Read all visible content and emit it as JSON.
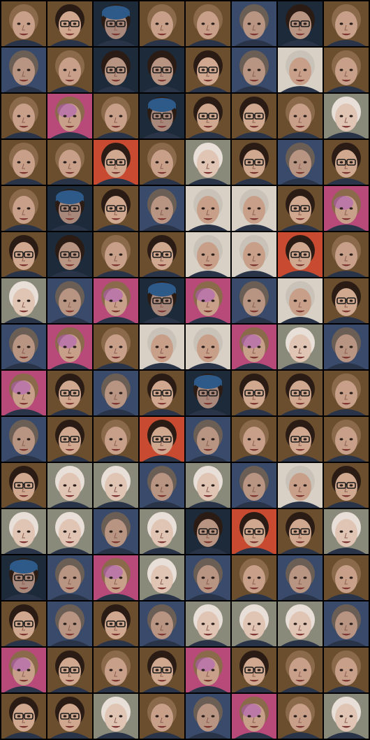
{
  "image": {
    "kind": "sample-grid",
    "rows": 16,
    "cols": 8,
    "colors": {
      "gutter": "#000000",
      "skin_tones": [
        "#c8a08a",
        "#b89483",
        "#d0a890",
        "#a9887c",
        "#e0c4b4"
      ],
      "hair_tones": [
        "#2a1c14",
        "#6b5e55",
        "#c9c2b8",
        "#8a6a4a",
        "#e8e0d8"
      ],
      "backgrounds": [
        "#6b4e2e",
        "#1c2a3a",
        "#3a4a6a",
        "#c84a30",
        "#d8d0c4",
        "#2e5a8a",
        "#8a8a7a",
        "#b84a7a"
      ]
    },
    "tiles": [
      [
        "face-1",
        "face-glasses",
        "face-cap-blue",
        "face-1",
        "face-1",
        "face-grey",
        "face-glasses-dark",
        "face-1"
      ],
      [
        "face-grey",
        "face-1",
        "face-glasses-dark",
        "face-glasses-dark",
        "face-glasses",
        "face-grey",
        "face-grey-light",
        "face-1"
      ],
      [
        "face-1",
        "face-pink",
        "face-1",
        "face-cap-blue",
        "face-glasses",
        "face-glasses",
        "face-1",
        "face-pale"
      ],
      [
        "face-1",
        "face-1",
        "face-glasses-red",
        "face-1",
        "face-pale",
        "face-glasses",
        "face-grey",
        "face-glasses"
      ],
      [
        "face-1",
        "face-cap-blue",
        "face-glasses",
        "face-grey",
        "face-grey-light",
        "face-grey-light",
        "face-glasses",
        "face-pink"
      ],
      [
        "face-glasses",
        "face-glasses-dark",
        "face-1",
        "face-glasses",
        "face-grey-light",
        "face-grey-light",
        "face-glasses-red",
        "face-1"
      ],
      [
        "face-pale",
        "face-grey",
        "face-pink",
        "face-cap-blue",
        "face-pink",
        "face-grey",
        "face-grey-light",
        "face-glasses"
      ],
      [
        "face-grey",
        "face-pink",
        "face-1",
        "face-grey-light",
        "face-grey-light",
        "face-pink",
        "face-pale",
        "face-grey"
      ],
      [
        "face-pink",
        "face-glasses",
        "face-grey",
        "face-glasses",
        "face-cap-blue",
        "face-glasses",
        "face-glasses",
        "face-1"
      ],
      [
        "face-grey",
        "face-glasses",
        "face-1",
        "face-glasses-red",
        "face-grey",
        "face-1",
        "face-glasses",
        "face-1"
      ],
      [
        "face-glasses",
        "face-pale",
        "face-pale",
        "face-grey",
        "face-pale",
        "face-grey",
        "face-grey-light",
        "face-glasses"
      ],
      [
        "face-pale",
        "face-pale",
        "face-grey",
        "face-pale",
        "face-glasses-dark",
        "face-glasses-red",
        "face-glasses",
        "face-pale"
      ],
      [
        "face-cap-blue",
        "face-grey",
        "face-pink",
        "face-pale",
        "face-grey",
        "face-1",
        "face-grey",
        "face-1"
      ],
      [
        "face-glasses",
        "face-grey",
        "face-glasses",
        "face-grey",
        "face-pale",
        "face-pale",
        "face-pale",
        "face-grey"
      ],
      [
        "face-pink",
        "face-glasses",
        "face-1",
        "face-glasses",
        "face-pink",
        "face-glasses",
        "face-1",
        "face-1"
      ],
      [
        "face-glasses",
        "face-glasses",
        "face-pale",
        "face-1",
        "face-grey",
        "face-pink",
        "face-1",
        "face-pale"
      ]
    ]
  }
}
